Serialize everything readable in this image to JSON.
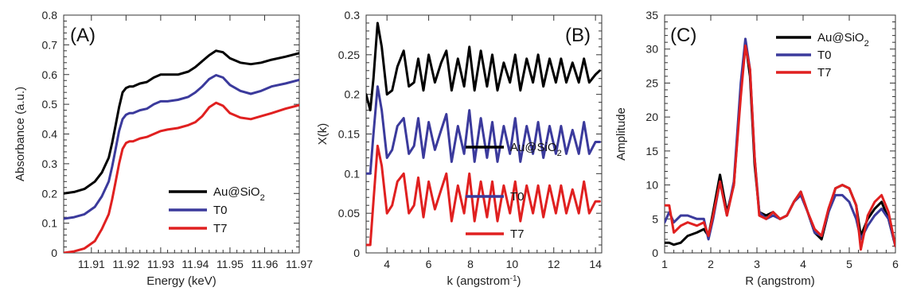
{
  "chart_data": [
    {
      "type": "line",
      "panel_label": "(A)",
      "xlabel": "Energy (keV)",
      "ylabel": "Absorbance (a.u.)",
      "xlim": [
        11.902,
        11.97
      ],
      "ylim": [
        0,
        0.8
      ],
      "xticks": [
        11.91,
        11.92,
        11.93,
        11.94,
        11.95,
        11.96,
        11.97
      ],
      "xtick_labels": [
        "11.91",
        "11.92",
        "11.93",
        "11.94",
        "11.95",
        "11.96",
        "11.97"
      ],
      "yticks": [
        0,
        0.1,
        0.2,
        0.3,
        0.4,
        0.5,
        0.6,
        0.7,
        0.8
      ],
      "ytick_labels": [
        "0",
        "0.1",
        "0.2",
        "0.3",
        "0.4",
        "0.5",
        "0.6",
        "0.7",
        "0.8"
      ],
      "legend_placement": "lower-right",
      "series": [
        {
          "name": "Au@SiO",
          "name_sub": "2",
          "color": "#000000",
          "x": [
            11.902,
            11.905,
            11.908,
            11.911,
            11.913,
            11.915,
            11.916,
            11.917,
            11.918,
            11.919,
            11.92,
            11.921,
            11.922,
            11.924,
            11.926,
            11.928,
            11.93,
            11.932,
            11.935,
            11.938,
            11.94,
            11.942,
            11.944,
            11.946,
            11.948,
            11.95,
            11.953,
            11.956,
            11.959,
            11.962,
            11.966,
            11.97
          ],
          "y": [
            0.2,
            0.205,
            0.215,
            0.24,
            0.27,
            0.32,
            0.37,
            0.43,
            0.49,
            0.54,
            0.555,
            0.56,
            0.56,
            0.57,
            0.575,
            0.59,
            0.6,
            0.6,
            0.6,
            0.61,
            0.625,
            0.645,
            0.665,
            0.68,
            0.675,
            0.655,
            0.64,
            0.635,
            0.64,
            0.65,
            0.66,
            0.672
          ]
        },
        {
          "name": "T0",
          "color": "#3b3a9c",
          "x": [
            11.902,
            11.905,
            11.908,
            11.911,
            11.913,
            11.915,
            11.916,
            11.917,
            11.918,
            11.919,
            11.92,
            11.921,
            11.922,
            11.924,
            11.926,
            11.928,
            11.93,
            11.932,
            11.935,
            11.938,
            11.94,
            11.942,
            11.944,
            11.946,
            11.948,
            11.95,
            11.953,
            11.956,
            11.959,
            11.962,
            11.966,
            11.97
          ],
          "y": [
            0.115,
            0.12,
            0.13,
            0.155,
            0.19,
            0.24,
            0.29,
            0.35,
            0.41,
            0.45,
            0.465,
            0.47,
            0.47,
            0.48,
            0.485,
            0.5,
            0.51,
            0.51,
            0.515,
            0.525,
            0.54,
            0.56,
            0.585,
            0.598,
            0.59,
            0.565,
            0.545,
            0.535,
            0.545,
            0.56,
            0.57,
            0.582
          ]
        },
        {
          "name": "T7",
          "color": "#e02020",
          "x": [
            11.902,
            11.905,
            11.908,
            11.911,
            11.913,
            11.915,
            11.916,
            11.917,
            11.918,
            11.919,
            11.92,
            11.921,
            11.922,
            11.924,
            11.926,
            11.928,
            11.93,
            11.932,
            11.935,
            11.938,
            11.94,
            11.942,
            11.944,
            11.946,
            11.948,
            11.95,
            11.953,
            11.956,
            11.959,
            11.962,
            11.966,
            11.97
          ],
          "y": [
            0.0,
            0.005,
            0.015,
            0.04,
            0.08,
            0.13,
            0.18,
            0.24,
            0.3,
            0.35,
            0.37,
            0.375,
            0.375,
            0.385,
            0.39,
            0.4,
            0.41,
            0.415,
            0.42,
            0.43,
            0.44,
            0.46,
            0.49,
            0.505,
            0.495,
            0.47,
            0.455,
            0.45,
            0.46,
            0.47,
            0.485,
            0.497
          ]
        }
      ]
    },
    {
      "type": "line",
      "panel_label": "(B)",
      "xlabel": "k (angstrom",
      "xlabel_sup": "-1",
      "xlabel_close": ")",
      "ylabel": "X(k)",
      "xlim": [
        3,
        14.3
      ],
      "ylim": [
        0,
        0.3
      ],
      "xticks": [
        4,
        6,
        8,
        10,
        12,
        14
      ],
      "xtick_labels": [
        "4",
        "6",
        "8",
        "10",
        "12",
        "14"
      ],
      "yticks": [
        0,
        0.05,
        0.1,
        0.15,
        0.2,
        0.25,
        0.3
      ],
      "ytick_labels": [
        "0",
        "0.05",
        "0.1",
        "0.15",
        "0.2",
        "0.25",
        "0.3"
      ],
      "legend_placement": "inline",
      "series": [
        {
          "name": "Au@SiO",
          "name_sub": "2",
          "color": "#000000",
          "x": [
            3.0,
            3.2,
            3.35,
            3.55,
            3.75,
            4.0,
            4.25,
            4.5,
            4.8,
            5.05,
            5.3,
            5.5,
            5.75,
            6.0,
            6.3,
            6.6,
            6.85,
            7.1,
            7.4,
            7.7,
            7.95,
            8.2,
            8.5,
            8.8,
            9.05,
            9.3,
            9.6,
            9.9,
            10.15,
            10.4,
            10.7,
            11.0,
            11.25,
            11.5,
            11.8,
            12.1,
            12.35,
            12.6,
            12.9,
            13.2,
            13.45,
            13.7,
            14.0,
            14.2
          ],
          "y": [
            0.2,
            0.18,
            0.22,
            0.29,
            0.26,
            0.2,
            0.205,
            0.235,
            0.255,
            0.21,
            0.215,
            0.245,
            0.205,
            0.25,
            0.215,
            0.24,
            0.255,
            0.205,
            0.245,
            0.21,
            0.26,
            0.205,
            0.255,
            0.21,
            0.25,
            0.205,
            0.24,
            0.215,
            0.25,
            0.205,
            0.245,
            0.215,
            0.25,
            0.21,
            0.245,
            0.215,
            0.245,
            0.215,
            0.24,
            0.215,
            0.245,
            0.215,
            0.225,
            0.23
          ]
        },
        {
          "name": "T0",
          "color": "#3b3a9c",
          "x": [
            3.0,
            3.2,
            3.35,
            3.55,
            3.75,
            4.0,
            4.25,
            4.5,
            4.8,
            5.05,
            5.3,
            5.5,
            5.75,
            6.0,
            6.3,
            6.6,
            6.85,
            7.1,
            7.4,
            7.7,
            7.95,
            8.2,
            8.5,
            8.8,
            9.05,
            9.3,
            9.6,
            9.9,
            10.15,
            10.4,
            10.7,
            11.0,
            11.25,
            11.5,
            11.8,
            12.1,
            12.35,
            12.6,
            12.9,
            13.2,
            13.45,
            13.7,
            14.0,
            14.2
          ],
          "y": [
            0.1,
            0.1,
            0.15,
            0.21,
            0.18,
            0.12,
            0.13,
            0.16,
            0.17,
            0.125,
            0.135,
            0.17,
            0.12,
            0.165,
            0.13,
            0.155,
            0.175,
            0.115,
            0.16,
            0.125,
            0.18,
            0.115,
            0.17,
            0.12,
            0.165,
            0.115,
            0.16,
            0.125,
            0.17,
            0.115,
            0.16,
            0.125,
            0.165,
            0.12,
            0.16,
            0.125,
            0.16,
            0.125,
            0.155,
            0.125,
            0.165,
            0.125,
            0.14,
            0.14
          ]
        },
        {
          "name": "T7",
          "color": "#e02020",
          "x": [
            3.0,
            3.2,
            3.35,
            3.55,
            3.75,
            4.0,
            4.25,
            4.5,
            4.8,
            5.05,
            5.3,
            5.5,
            5.75,
            6.0,
            6.3,
            6.6,
            6.85,
            7.1,
            7.4,
            7.7,
            7.95,
            8.2,
            8.5,
            8.8,
            9.05,
            9.3,
            9.6,
            9.9,
            10.15,
            10.4,
            10.7,
            11.0,
            11.25,
            11.5,
            11.8,
            12.1,
            12.35,
            12.6,
            12.9,
            13.2,
            13.45,
            13.7,
            14.0,
            14.2
          ],
          "y": [
            0.01,
            0.01,
            0.065,
            0.135,
            0.11,
            0.05,
            0.06,
            0.09,
            0.1,
            0.05,
            0.06,
            0.095,
            0.045,
            0.09,
            0.055,
            0.08,
            0.1,
            0.04,
            0.085,
            0.05,
            0.1,
            0.04,
            0.09,
            0.045,
            0.09,
            0.04,
            0.085,
            0.05,
            0.09,
            0.04,
            0.085,
            0.05,
            0.085,
            0.045,
            0.085,
            0.05,
            0.085,
            0.05,
            0.08,
            0.05,
            0.09,
            0.05,
            0.065,
            0.065
          ]
        }
      ]
    },
    {
      "type": "line",
      "panel_label": "(C)",
      "xlabel": "R (angstrom)",
      "ylabel": "Amplitude",
      "xlim": [
        1,
        6
      ],
      "ylim": [
        0,
        35
      ],
      "xticks": [
        1,
        2,
        3,
        4,
        5,
        6
      ],
      "xtick_labels": [
        "1",
        "2",
        "3",
        "4",
        "5",
        "6"
      ],
      "yticks": [
        0,
        5,
        10,
        15,
        20,
        25,
        30,
        35
      ],
      "ytick_labels": [
        "0",
        "5",
        "10",
        "15",
        "20",
        "25",
        "30",
        "35"
      ],
      "legend_placement": "top-right",
      "series": [
        {
          "name": "Au@SiO",
          "name_sub": "2",
          "color": "#000000",
          "x": [
            1.0,
            1.1,
            1.2,
            1.35,
            1.5,
            1.7,
            1.85,
            1.95,
            2.05,
            2.2,
            2.35,
            2.5,
            2.65,
            2.75,
            2.85,
            2.95,
            3.05,
            3.2,
            3.35,
            3.5,
            3.65,
            3.8,
            3.95,
            4.1,
            4.25,
            4.4,
            4.55,
            4.7,
            4.85,
            5.0,
            5.15,
            5.25,
            5.4,
            5.55,
            5.7,
            5.85,
            6.0
          ],
          "y": [
            1.5,
            1.5,
            1.2,
            1.5,
            2.5,
            3.0,
            3.5,
            2.5,
            6.0,
            11.5,
            6.0,
            10.0,
            24.0,
            31.0,
            26.0,
            13.0,
            6.0,
            5.5,
            6.0,
            5.0,
            5.5,
            7.5,
            9.0,
            6.0,
            3.0,
            2.0,
            6.0,
            9.5,
            10.0,
            9.5,
            7.0,
            2.5,
            5.0,
            6.5,
            7.5,
            5.0,
            1.0
          ]
        },
        {
          "name": "T0",
          "color": "#3b3a9c",
          "x": [
            1.0,
            1.1,
            1.2,
            1.35,
            1.5,
            1.7,
            1.85,
            1.95,
            2.05,
            2.2,
            2.35,
            2.5,
            2.65,
            2.75,
            2.85,
            2.95,
            3.05,
            3.2,
            3.35,
            3.5,
            3.65,
            3.8,
            3.95,
            4.1,
            4.25,
            4.4,
            4.55,
            4.7,
            4.85,
            5.0,
            5.15,
            5.25,
            5.4,
            5.55,
            5.7,
            5.85,
            6.0
          ],
          "y": [
            4.5,
            6.0,
            4.5,
            5.5,
            5.5,
            5.0,
            5.0,
            2.0,
            5.0,
            10.5,
            5.5,
            10.5,
            25.0,
            31.5,
            27.0,
            14.0,
            6.0,
            5.0,
            5.5,
            5.0,
            5.5,
            7.5,
            8.5,
            6.0,
            3.0,
            2.5,
            6.0,
            8.5,
            8.5,
            7.5,
            5.0,
            2.0,
            4.0,
            5.5,
            6.5,
            5.0,
            1.0
          ]
        },
        {
          "name": "T7",
          "color": "#e02020",
          "x": [
            1.0,
            1.1,
            1.2,
            1.35,
            1.5,
            1.7,
            1.85,
            1.95,
            2.05,
            2.2,
            2.35,
            2.5,
            2.65,
            2.75,
            2.85,
            2.95,
            3.05,
            3.2,
            3.35,
            3.5,
            3.65,
            3.8,
            3.95,
            4.1,
            4.25,
            4.4,
            4.55,
            4.7,
            4.85,
            5.0,
            5.15,
            5.25,
            5.4,
            5.55,
            5.7,
            5.85,
            6.0
          ],
          "y": [
            7.0,
            7.0,
            3.0,
            4.0,
            4.5,
            4.0,
            4.5,
            2.5,
            5.5,
            10.5,
            5.5,
            10.0,
            23.0,
            30.5,
            27.0,
            14.0,
            5.5,
            5.0,
            6.0,
            5.0,
            5.5,
            7.5,
            9.0,
            6.0,
            3.5,
            2.5,
            6.5,
            9.5,
            10.0,
            9.5,
            7.0,
            0.5,
            5.5,
            7.5,
            8.5,
            6.0,
            1.0
          ]
        }
      ]
    }
  ]
}
